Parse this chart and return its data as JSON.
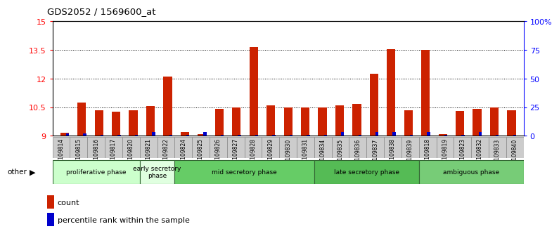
{
  "title": "GDS2052 / 1569600_at",
  "samples": [
    "GSM109814",
    "GSM109815",
    "GSM109816",
    "GSM109817",
    "GSM109820",
    "GSM109821",
    "GSM109822",
    "GSM109824",
    "GSM109825",
    "GSM109826",
    "GSM109827",
    "GSM109828",
    "GSM109829",
    "GSM109830",
    "GSM109831",
    "GSM109834",
    "GSM109835",
    "GSM109836",
    "GSM109837",
    "GSM109838",
    "GSM109839",
    "GSM109818",
    "GSM109819",
    "GSM109823",
    "GSM109832",
    "GSM109833",
    "GSM109840"
  ],
  "counts": [
    9.15,
    10.75,
    10.35,
    10.25,
    10.35,
    10.55,
    12.1,
    9.2,
    9.1,
    10.4,
    10.5,
    13.65,
    10.6,
    10.5,
    10.5,
    10.5,
    10.6,
    10.65,
    12.25,
    13.55,
    10.35,
    13.5,
    9.1,
    10.3,
    10.4,
    10.5,
    10.35
  ],
  "percentiles": [
    4,
    4,
    2,
    2,
    2,
    6,
    2,
    2,
    6,
    2,
    2,
    2,
    2,
    2,
    2,
    2,
    6,
    2,
    6,
    6,
    2,
    6,
    2,
    2,
    6,
    2,
    2
  ],
  "phases": [
    {
      "name": "proliferative phase",
      "start": 0,
      "end": 5,
      "color": "#ccffcc"
    },
    {
      "name": "early secretory\nphase",
      "start": 5,
      "end": 7,
      "color": "#e0ffe0"
    },
    {
      "name": "mid secretory phase",
      "start": 7,
      "end": 15,
      "color": "#66cc66"
    },
    {
      "name": "late secretory phase",
      "start": 15,
      "end": 21,
      "color": "#55bb55"
    },
    {
      "name": "ambiguous phase",
      "start": 21,
      "end": 27,
      "color": "#77cc77"
    }
  ],
  "ylim": [
    9.0,
    15.0
  ],
  "yticks": [
    9.0,
    10.5,
    12.0,
    13.5,
    15.0
  ],
  "ytick_labels": [
    "9",
    "10.5",
    "12",
    "13.5",
    "15"
  ],
  "y2ticks": [
    0,
    25,
    50,
    75,
    100
  ],
  "y2tick_labels": [
    "0",
    "25",
    "50",
    "75",
    "100%"
  ],
  "bar_color_red": "#cc2200",
  "bar_color_blue": "#0000cc",
  "plot_bg": "#ffffff",
  "tick_area_bg": "#cccccc"
}
